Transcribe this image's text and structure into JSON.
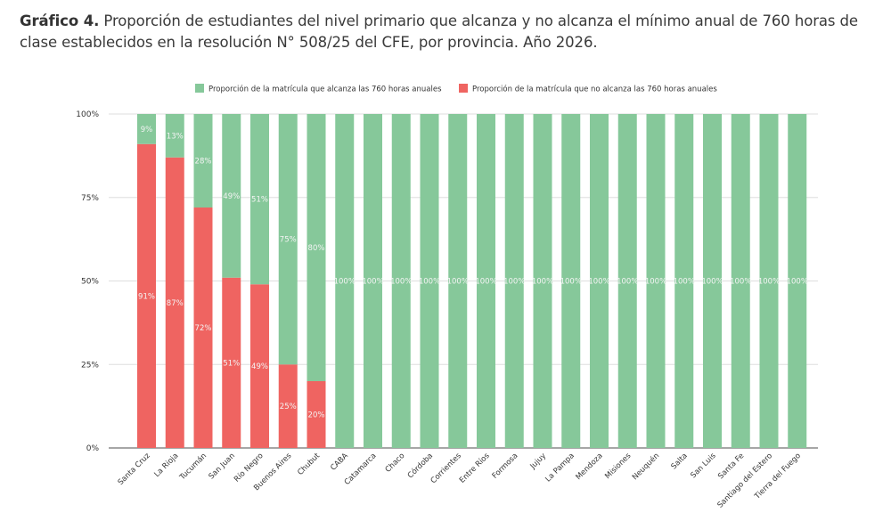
{
  "title": {
    "bold": "Gráfico 4.",
    "text": " Proporción de estudiantes del nivel primario que alcanza y no alcanza el mínimo anual de 760 horas de clase establecidos en la resolución N° 508/25 del CFE, por provincia. Año 2026."
  },
  "chart_data": {
    "type": "bar",
    "stacked": true,
    "title": "Proporción de estudiantes del nivel primario que alcanza y no alcanza el mínimo anual de 760 horas de clase establecidos en la resolución N° 508/25 del CFE, por provincia. Año 2026.",
    "xlabel": "",
    "ylabel": "",
    "ylim": [
      0,
      100
    ],
    "yticks": [
      "0%",
      "25%",
      "50%",
      "75%",
      "100%"
    ],
    "grid": true,
    "legend_position": "top",
    "categories": [
      "Santa Cruz",
      "La Rioja",
      "Tucumán",
      "San Juan",
      "Río Negro",
      "Buenos Aires",
      "Chubut",
      "CABA",
      "Catamarca",
      "Chaco",
      "Córdoba",
      "Corrientes",
      "Entre Ríos",
      "Formosa",
      "Jujuy",
      "La Pampa",
      "Mendoza",
      "Misiones",
      "Neuquén",
      "Salta",
      "San Luis",
      "Santa Fe",
      "Santiago del Estero",
      "Tierra del Fuego"
    ],
    "series": [
      {
        "name": "Proporción de la matrícula que no alcanza las 760 horas anuales",
        "color": "#ef6461",
        "values": [
          91,
          87,
          72,
          51,
          49,
          25,
          20,
          0,
          0,
          0,
          0,
          0,
          0,
          0,
          0,
          0,
          0,
          0,
          0,
          0,
          0,
          0,
          0,
          0
        ]
      },
      {
        "name": "Proporción de la matrícula que alcanza las 760 horas anuales",
        "color": "#86c89a",
        "values": [
          9,
          13,
          28,
          49,
          51,
          75,
          80,
          100,
          100,
          100,
          100,
          100,
          100,
          100,
          100,
          100,
          100,
          100,
          100,
          100,
          100,
          100,
          100,
          100
        ]
      }
    ],
    "legend": [
      {
        "label": "Proporción de la matrícula que alcanza las 760 horas anuales",
        "color": "#86c89a"
      },
      {
        "label": "Proporción de la matrícula que no alcanza las 760 horas anuales",
        "color": "#ef6461"
      }
    ]
  }
}
